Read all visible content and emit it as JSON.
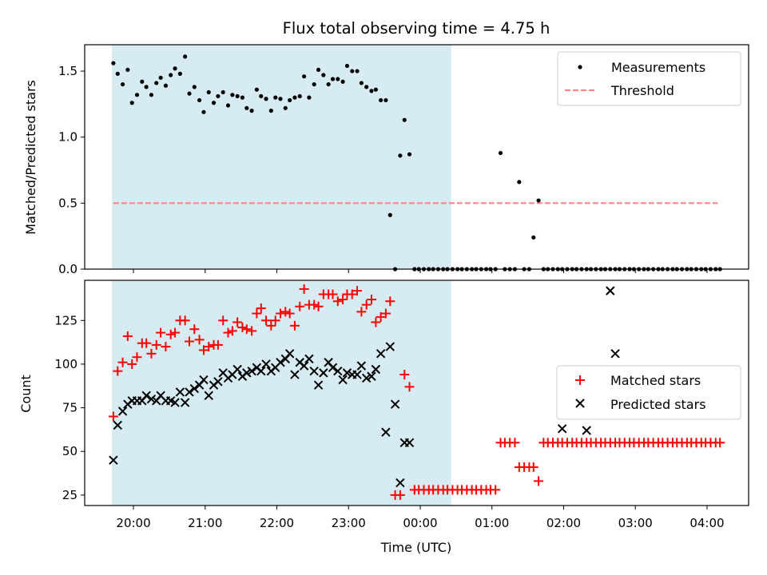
{
  "chart_data": [
    {
      "type": "scatter",
      "title": "Flux total observing time = 4.75 h",
      "xlabel": "",
      "ylabel": "Matched/Predicted stars",
      "xlim": [
        19.32,
        28.58
      ],
      "ylim": [
        0,
        1.7
      ],
      "yticks": [
        0.0,
        0.5,
        1.0,
        1.5
      ],
      "ytick_labels": [
        "0.0",
        "0.5",
        "1.0",
        "1.5"
      ],
      "shaded_span": {
        "x": [
          19.7,
          24.43
        ],
        "color": "#add8e6"
      },
      "legend_position": "top-right",
      "series": [
        {
          "name": "Measurements",
          "color": "#000000",
          "marker": "dot",
          "x": [
            19.72,
            19.78,
            19.85,
            19.92,
            19.98,
            20.05,
            20.12,
            20.18,
            20.25,
            20.32,
            20.38,
            20.45,
            20.52,
            20.58,
            20.65,
            20.72,
            20.78,
            20.85,
            20.92,
            20.98,
            21.05,
            21.12,
            21.18,
            21.25,
            21.32,
            21.38,
            21.45,
            21.52,
            21.58,
            21.65,
            21.72,
            21.78,
            21.85,
            21.92,
            21.98,
            22.05,
            22.12,
            22.18,
            22.25,
            22.32,
            22.38,
            22.45,
            22.52,
            22.58,
            22.65,
            22.72,
            22.78,
            22.85,
            22.92,
            22.98,
            23.05,
            23.12,
            23.18,
            23.25,
            23.32,
            23.38,
            23.45,
            23.52,
            23.58,
            23.65,
            23.72,
            23.78,
            23.85,
            23.92,
            23.98,
            24.05,
            24.12,
            24.18,
            24.25,
            24.32,
            24.38,
            24.45,
            24.52,
            24.58,
            24.65,
            24.72,
            24.78,
            24.85,
            24.92,
            24.98,
            25.05,
            25.12,
            25.18,
            25.25,
            25.32,
            25.38,
            25.45,
            25.52,
            25.58,
            25.65,
            25.72,
            25.78,
            25.85,
            25.92,
            25.98,
            26.05,
            26.12,
            26.18,
            26.25,
            26.32,
            26.38,
            26.45,
            26.52,
            26.58,
            26.65,
            26.72,
            26.78,
            26.85,
            26.92,
            26.98,
            27.05,
            27.12,
            27.18,
            27.25,
            27.32,
            27.38,
            27.45,
            27.52,
            27.58,
            27.65,
            27.72,
            27.78,
            27.85,
            27.92,
            27.98,
            28.05,
            28.12,
            28.18
          ],
          "y": [
            1.56,
            1.48,
            1.4,
            1.51,
            1.26,
            1.32,
            1.42,
            1.38,
            1.32,
            1.41,
            1.45,
            1.39,
            1.47,
            1.52,
            1.48,
            1.61,
            1.33,
            1.38,
            1.28,
            1.19,
            1.34,
            1.26,
            1.31,
            1.34,
            1.24,
            1.32,
            1.31,
            1.3,
            1.22,
            1.2,
            1.36,
            1.31,
            1.29,
            1.2,
            1.3,
            1.29,
            1.22,
            1.28,
            1.3,
            1.31,
            1.46,
            1.3,
            1.4,
            1.51,
            1.47,
            1.4,
            1.44,
            1.44,
            1.42,
            1.54,
            1.5,
            1.5,
            1.41,
            1.38,
            1.35,
            1.36,
            1.28,
            1.28,
            0.41,
            0.0,
            0.86,
            1.13,
            0.87,
            0.0,
            0.0,
            0.0,
            0.0,
            0.0,
            0.0,
            0.0,
            0.0,
            0.0,
            0.0,
            0.0,
            0.0,
            0.0,
            0.0,
            0.0,
            0.0,
            0.0,
            0.0,
            0.88,
            0.0,
            0.0,
            0.0,
            0.66,
            0.0,
            0.0,
            0.24,
            0.52,
            0.0,
            0.0,
            0.0,
            0.0,
            0.0,
            0.0,
            0.0,
            0.0,
            0.0,
            0.0,
            0.0,
            0.0,
            0.0,
            0.0,
            0.0,
            0.0,
            0.0,
            0.0,
            0.0,
            0.0,
            0.0,
            0.0,
            0.0,
            0.0,
            0.0,
            0.0,
            0.0,
            0.0,
            0.0,
            0.0,
            0.0,
            0.0,
            0.0,
            0.0,
            0.0,
            0.0,
            0.0,
            0.0
          ]
        },
        {
          "name": "Threshold",
          "color": "#ff7f7f",
          "style": "dashed",
          "x": [
            19.72,
            28.15
          ],
          "y": [
            0.5,
            0.5
          ]
        }
      ]
    },
    {
      "type": "scatter",
      "title": "",
      "xlabel": "Time (UTC)",
      "ylabel": "Count",
      "xlim": [
        19.32,
        28.58
      ],
      "ylim": [
        19,
        148
      ],
      "yticks": [
        25,
        50,
        75,
        100,
        125
      ],
      "ytick_labels": [
        "25",
        "50",
        "75",
        "100",
        "125"
      ],
      "xticks": [
        20,
        21,
        22,
        23,
        24,
        25,
        26,
        27,
        28
      ],
      "xtick_labels": [
        "20:00",
        "21:00",
        "22:00",
        "23:00",
        "00:00",
        "01:00",
        "02:00",
        "03:00",
        "04:00"
      ],
      "shaded_span": {
        "x": [
          19.7,
          24.43
        ],
        "color": "#add8e6"
      },
      "legend_position": "center-right",
      "series": [
        {
          "name": "Matched stars",
          "color": "#ff0000",
          "marker": "plus",
          "x": [
            19.72,
            19.78,
            19.85,
            19.92,
            19.98,
            20.05,
            20.12,
            20.18,
            20.25,
            20.32,
            20.38,
            20.45,
            20.52,
            20.58,
            20.65,
            20.72,
            20.78,
            20.85,
            20.92,
            20.98,
            21.05,
            21.12,
            21.18,
            21.25,
            21.32,
            21.38,
            21.45,
            21.52,
            21.58,
            21.65,
            21.72,
            21.78,
            21.85,
            21.92,
            21.98,
            22.05,
            22.12,
            22.18,
            22.25,
            22.32,
            22.38,
            22.45,
            22.52,
            22.58,
            22.65,
            22.72,
            22.78,
            22.85,
            22.92,
            22.98,
            23.05,
            23.12,
            23.18,
            23.25,
            23.32,
            23.38,
            23.45,
            23.52,
            23.58,
            23.65,
            23.72,
            23.78,
            23.85,
            23.92,
            23.98,
            24.05,
            24.12,
            24.18,
            24.25,
            24.32,
            24.38,
            24.45,
            24.52,
            24.58,
            24.65,
            24.72,
            24.78,
            24.85,
            24.92,
            24.98,
            25.05,
            25.12,
            25.18,
            25.25,
            25.32,
            25.38,
            25.45,
            25.52,
            25.58,
            25.65,
            25.72,
            25.78,
            25.85,
            25.92,
            25.98,
            26.05,
            26.12,
            26.18,
            26.25,
            26.32,
            26.38,
            26.45,
            26.52,
            26.58,
            26.65,
            26.72,
            26.78,
            26.85,
            26.92,
            26.98,
            27.05,
            27.12,
            27.18,
            27.25,
            27.32,
            27.38,
            27.45,
            27.52,
            27.58,
            27.65,
            27.72,
            27.78,
            27.85,
            27.92,
            27.98,
            28.05,
            28.12,
            28.18
          ],
          "y": [
            70,
            96,
            101,
            116,
            100,
            104,
            112,
            112,
            106,
            111,
            118,
            110,
            117,
            118,
            125,
            125,
            113,
            120,
            114,
            108,
            110,
            111,
            111,
            125,
            118,
            119,
            124,
            121,
            120,
            119,
            129,
            132,
            125,
            122,
            125,
            129,
            130,
            129,
            122,
            133,
            143,
            134,
            134,
            133,
            140,
            140,
            140,
            136,
            137,
            140,
            140,
            142,
            130,
            134,
            137,
            124,
            127,
            129,
            136,
            25,
            25,
            94,
            87,
            28,
            28,
            28,
            28,
            28,
            28,
            28,
            28,
            28,
            28,
            28,
            28,
            28,
            28,
            28,
            28,
            28,
            28,
            55,
            55,
            55,
            55,
            41,
            41,
            41,
            41,
            33,
            55,
            55,
            55,
            55,
            55,
            55,
            55,
            55,
            55,
            55,
            55,
            55,
            55,
            55,
            55,
            55,
            55,
            55,
            55,
            55,
            55,
            55,
            55,
            55,
            55,
            55,
            55,
            55,
            55,
            55,
            55,
            55,
            55,
            55,
            55,
            55,
            55,
            55
          ]
        },
        {
          "name": "Predicted stars",
          "color": "#000000",
          "marker": "x",
          "x": [
            19.72,
            19.78,
            19.85,
            19.92,
            19.98,
            20.05,
            20.12,
            20.18,
            20.25,
            20.32,
            20.38,
            20.45,
            20.52,
            20.58,
            20.65,
            20.72,
            20.78,
            20.85,
            20.92,
            20.98,
            21.05,
            21.12,
            21.18,
            21.25,
            21.32,
            21.38,
            21.45,
            21.52,
            21.58,
            21.65,
            21.72,
            21.78,
            21.85,
            21.92,
            21.98,
            22.05,
            22.12,
            22.18,
            22.25,
            22.32,
            22.38,
            22.45,
            22.52,
            22.58,
            22.65,
            22.72,
            22.78,
            22.85,
            22.92,
            22.98,
            23.05,
            23.12,
            23.18,
            23.25,
            23.32,
            23.38,
            23.45,
            23.52,
            23.58,
            23.65,
            23.72,
            23.78,
            23.85,
            25.98,
            26.32,
            26.65,
            26.72
          ],
          "y": [
            45,
            65,
            73,
            77,
            79,
            79,
            79,
            82,
            80,
            79,
            82,
            79,
            79,
            78,
            84,
            78,
            84,
            86,
            88,
            91,
            82,
            88,
            90,
            95,
            92,
            94,
            97,
            93,
            95,
            96,
            98,
            96,
            100,
            96,
            98,
            101,
            103,
            106,
            94,
            101,
            99,
            103,
            96,
            88,
            95,
            101,
            98,
            96,
            91,
            95,
            94,
            94,
            99,
            92,
            93,
            97,
            106,
            61,
            110,
            77,
            32,
            55,
            55,
            63,
            62,
            142,
            106
          ]
        }
      ]
    }
  ]
}
